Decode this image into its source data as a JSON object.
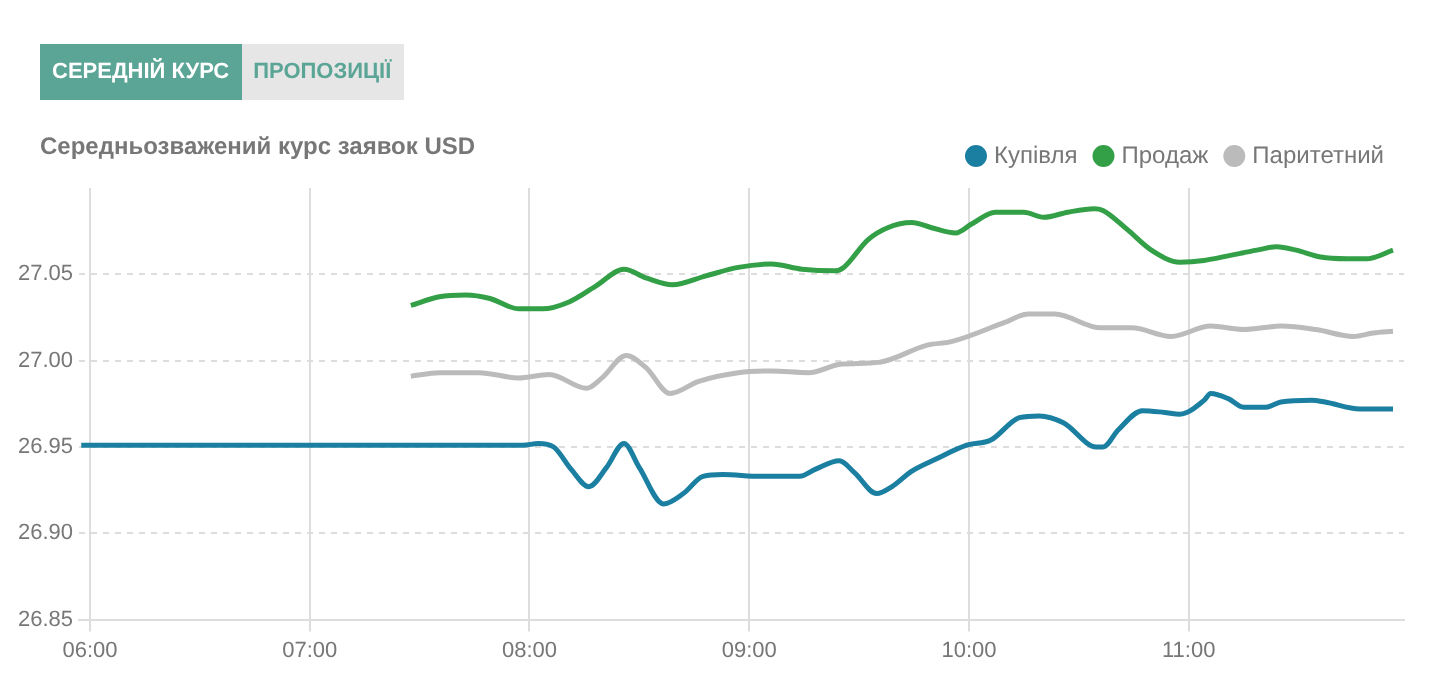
{
  "chart_data": {
    "type": "line",
    "title": "Середньозважений курс заявок USD",
    "annotations": [
      "СЕРЕДНІЙ КУРС",
      "ПРОПОЗИЦІЇ"
    ],
    "xlim": [
      5.95,
      11.98
    ],
    "xticks": [
      {
        "value": 6,
        "label": "06:00"
      },
      {
        "value": 7,
        "label": "07:00"
      },
      {
        "value": 8,
        "label": "08:00"
      },
      {
        "value": 9,
        "label": "09:00"
      },
      {
        "value": 10,
        "label": "10:00"
      },
      {
        "value": 11,
        "label": "11:00"
      }
    ],
    "ylim": [
      26.85,
      27.1
    ],
    "yticks": [
      {
        "value": 26.85,
        "label": "26.85"
      },
      {
        "value": 26.9,
        "label": "26.90"
      },
      {
        "value": 26.95,
        "label": "26.95"
      },
      {
        "value": 27,
        "label": "27.00"
      },
      {
        "value": 27.05,
        "label": "27.05"
      }
    ],
    "grid": true,
    "legend": "top right",
    "marker": "none",
    "line_style": "solid",
    "series": [
      {
        "name": "Купівля",
        "color": "#1a7fa0",
        "x": [
          5.96,
          7.97,
          8.04,
          8.11,
          8.19,
          8.27,
          8.35,
          8.43,
          8.5,
          8.61,
          8.7,
          8.79,
          8.88,
          9.05,
          9.23,
          9.3,
          9.41,
          9.48,
          9.58,
          9.65,
          9.74,
          9.85,
          9.99,
          10.1,
          10.23,
          10.32,
          10.43,
          10.58,
          10.61,
          10.68,
          10.79,
          10.89,
          10.96,
          11.07,
          11.1,
          11.18,
          11.25,
          11.35,
          11.42,
          11.56,
          11.62,
          11.78,
          11.93
        ],
        "values": [
          26.951,
          26.951,
          26.952,
          26.95,
          26.937,
          26.927,
          26.938,
          26.952,
          26.938,
          26.917,
          26.923,
          26.933,
          26.934,
          26.933,
          26.933,
          26.937,
          26.942,
          26.935,
          26.923,
          26.927,
          26.936,
          26.943,
          26.951,
          26.954,
          26.967,
          26.968,
          26.964,
          26.95,
          26.95,
          26.96,
          26.971,
          26.97,
          26.969,
          26.977,
          26.981,
          26.978,
          26.973,
          26.973,
          26.976,
          26.977,
          26.976,
          26.972,
          26.972
        ]
      },
      {
        "name": "Продаж",
        "color": "#33a047",
        "x": [
          7.46,
          7.59,
          7.71,
          7.82,
          7.95,
          8.06,
          8.18,
          8.3,
          8.43,
          8.53,
          8.65,
          8.8,
          8.95,
          9.1,
          9.24,
          9.39,
          9.43,
          9.54,
          9.63,
          9.74,
          9.83,
          9.94,
          10.01,
          10.12,
          10.25,
          10.34,
          10.45,
          10.57,
          10.61,
          10.72,
          10.83,
          10.96,
          11.07,
          11.19,
          11.31,
          11.4,
          11.49,
          11.6,
          11.72,
          11.81,
          11.93
        ],
        "values": [
          27.032,
          27.037,
          27.038,
          27.036,
          27.03,
          27.03,
          27.034,
          27.043,
          27.053,
          27.048,
          27.044,
          27.049,
          27.054,
          27.056,
          27.053,
          27.052,
          27.054,
          27.07,
          27.077,
          27.08,
          27.077,
          27.074,
          27.079,
          27.086,
          27.086,
          27.083,
          27.086,
          27.088,
          27.087,
          27.076,
          27.064,
          27.057,
          27.058,
          27.061,
          27.064,
          27.066,
          27.064,
          27.06,
          27.059,
          27.059,
          27.064
        ]
      },
      {
        "name": "Паритетний",
        "color": "#bbbbbb",
        "x": [
          7.46,
          7.59,
          7.77,
          7.95,
          8.09,
          8.26,
          8.33,
          8.44,
          8.53,
          8.64,
          8.77,
          8.95,
          9.1,
          9.27,
          9.42,
          9.59,
          9.81,
          9.92,
          10.16,
          10.27,
          10.39,
          10.6,
          10.74,
          10.92,
          11.1,
          11.25,
          11.42,
          11.58,
          11.75,
          11.84,
          11.93
        ],
        "values": [
          26.991,
          26.993,
          26.993,
          26.99,
          26.992,
          26.984,
          26.99,
          27.003,
          26.996,
          26.981,
          26.988,
          26.993,
          26.994,
          26.993,
          26.998,
          26.999,
          27.009,
          27.011,
          27.022,
          27.027,
          27.027,
          27.019,
          27.019,
          27.014,
          27.02,
          27.018,
          27.02,
          27.018,
          27.014,
          27.016,
          27.017
        ]
      }
    ]
  }
}
